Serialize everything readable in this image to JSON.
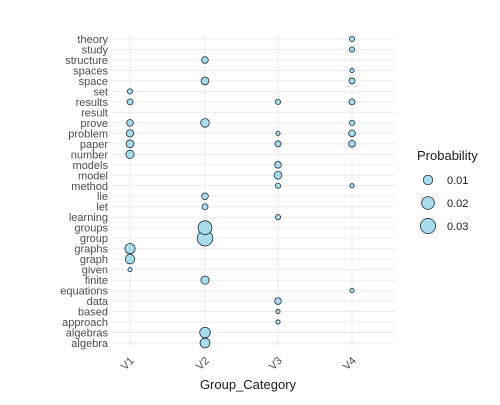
{
  "chart_data": {
    "type": "scatter",
    "title": "",
    "xlabel": "Group_Category",
    "ylabel": "",
    "x_categories": [
      "V1",
      "V2",
      "V3",
      "V4"
    ],
    "y_categories": [
      "algebra",
      "algebras",
      "approach",
      "based",
      "data",
      "equations",
      "finite",
      "given",
      "graph",
      "graphs",
      "group",
      "groups",
      "learning",
      "let",
      "lie",
      "method",
      "model",
      "models",
      "number",
      "paper",
      "problem",
      "prove",
      "result",
      "results",
      "set",
      "space",
      "spaces",
      "structure",
      "study",
      "theory"
    ],
    "size_variable": "Probability",
    "grid": true,
    "legend": {
      "title": "Probability",
      "placement": "right",
      "entries": [
        {
          "label": "0.01",
          "value": 0.01
        },
        {
          "label": "0.02",
          "value": 0.02
        },
        {
          "label": "0.03",
          "value": 0.03
        }
      ]
    },
    "colors": {
      "point_fill": "#a8dcec",
      "point_stroke": "#1f2f3a",
      "grid": "#ebebeb",
      "axis_text": "#4d4d4d",
      "title_text": "#1a1a1a"
    },
    "points": [
      {
        "x": "V1",
        "y": "graphs",
        "value": 0.012
      },
      {
        "x": "V1",
        "y": "graph",
        "value": 0.01
      },
      {
        "x": "V1",
        "y": "given",
        "value": 0.001
      },
      {
        "x": "V1",
        "y": "number",
        "value": 0.007
      },
      {
        "x": "V1",
        "y": "paper",
        "value": 0.006
      },
      {
        "x": "V1",
        "y": "problem",
        "value": 0.005
      },
      {
        "x": "V1",
        "y": "prove",
        "value": 0.004
      },
      {
        "x": "V1",
        "y": "results",
        "value": 0.003
      },
      {
        "x": "V1",
        "y": "set",
        "value": 0.002
      },
      {
        "x": "V2",
        "y": "algebra",
        "value": 0.011
      },
      {
        "x": "V2",
        "y": "algebras",
        "value": 0.013
      },
      {
        "x": "V2",
        "y": "finite",
        "value": 0.007
      },
      {
        "x": "V2",
        "y": "group",
        "value": 0.032
      },
      {
        "x": "V2",
        "y": "groups",
        "value": 0.024
      },
      {
        "x": "V2",
        "y": "let",
        "value": 0.003
      },
      {
        "x": "V2",
        "y": "lie",
        "value": 0.004
      },
      {
        "x": "V2",
        "y": "prove",
        "value": 0.008
      },
      {
        "x": "V2",
        "y": "space",
        "value": 0.006
      },
      {
        "x": "V2",
        "y": "structure",
        "value": 0.004
      },
      {
        "x": "V3",
        "y": "approach",
        "value": 0.001
      },
      {
        "x": "V3",
        "y": "based",
        "value": 0.001
      },
      {
        "x": "V3",
        "y": "data",
        "value": 0.004
      },
      {
        "x": "V3",
        "y": "learning",
        "value": 0.002
      },
      {
        "x": "V3",
        "y": "method",
        "value": 0.002
      },
      {
        "x": "V3",
        "y": "model",
        "value": 0.006
      },
      {
        "x": "V3",
        "y": "models",
        "value": 0.004
      },
      {
        "x": "V3",
        "y": "paper",
        "value": 0.003
      },
      {
        "x": "V3",
        "y": "problem",
        "value": 0.001
      },
      {
        "x": "V3",
        "y": "results",
        "value": 0.002
      },
      {
        "x": "V4",
        "y": "equations",
        "value": 0.001
      },
      {
        "x": "V4",
        "y": "method",
        "value": 0.001
      },
      {
        "x": "V4",
        "y": "paper",
        "value": 0.004
      },
      {
        "x": "V4",
        "y": "problem",
        "value": 0.004
      },
      {
        "x": "V4",
        "y": "prove",
        "value": 0.002
      },
      {
        "x": "V4",
        "y": "results",
        "value": 0.003
      },
      {
        "x": "V4",
        "y": "space",
        "value": 0.003
      },
      {
        "x": "V4",
        "y": "spaces",
        "value": 0.001
      },
      {
        "x": "V4",
        "y": "study",
        "value": 0.002
      },
      {
        "x": "V4",
        "y": "theory",
        "value": 0.002
      }
    ]
  }
}
